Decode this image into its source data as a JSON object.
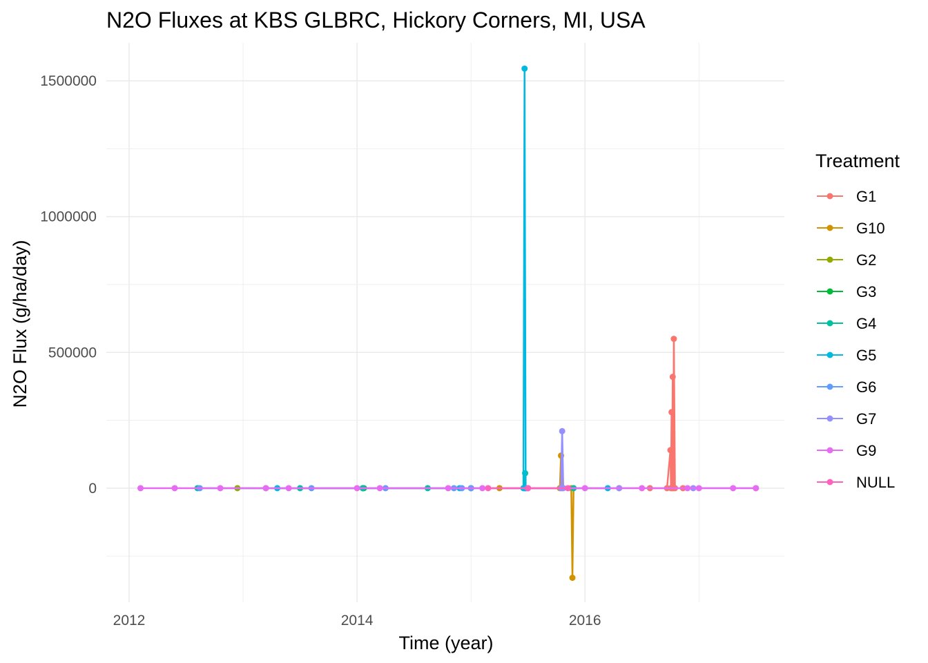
{
  "chart_data": {
    "type": "line",
    "title": "N2O Fluxes at KBS GLBRC, Hickory Corners, MI, USA",
    "xlabel": "Time (year)",
    "ylabel": "N2O Flux (g/ha/day)",
    "xlim": [
      2011.8,
      2017.75
    ],
    "ylim": [
      -420000,
      1640000
    ],
    "x_ticks": [
      2012,
      2014,
      2016
    ],
    "x_tick_labels": [
      "2012",
      "2014",
      "2016"
    ],
    "y_ticks": [
      0,
      500000,
      1000000,
      1500000
    ],
    "y_tick_labels": [
      "0",
      "500000",
      "1000000",
      "1500000"
    ],
    "grid": true,
    "legend": {
      "title": "Treatment",
      "position": "right"
    },
    "series": [
      {
        "name": "G1",
        "color": "#F8766D",
        "x": [
          2016.57,
          2016.72,
          2016.75,
          2016.755,
          2016.76,
          2016.765,
          2016.77,
          2016.775,
          2016.78,
          2016.79,
          2016.86
        ],
        "y": [
          0,
          0,
          140000,
          0,
          280000,
          0,
          410000,
          0,
          550000,
          0,
          0
        ]
      },
      {
        "name": "G10",
        "color": "#D39200",
        "x": [
          2015.25,
          2015.78,
          2015.79,
          2015.8,
          2015.88,
          2015.89,
          2015.9,
          2016.3
        ],
        "y": [
          0,
          0,
          120000,
          0,
          0,
          -330000,
          0,
          0
        ]
      },
      {
        "name": "G2",
        "color": "#93AA00",
        "x": [
          2012.95,
          2015.0
        ],
        "y": [
          0,
          0
        ]
      },
      {
        "name": "G3",
        "color": "#00BA38",
        "x": [
          2014.05,
          2014.06
        ],
        "y": [
          0,
          0
        ]
      },
      {
        "name": "G4",
        "color": "#00C19F",
        "x": [
          2012.6,
          2013.5,
          2014.05,
          2014.62,
          2015.0,
          2015.47,
          2015.475,
          2015.48,
          2015.9
        ],
        "y": [
          0,
          0,
          0,
          0,
          0,
          0,
          55000,
          0,
          0
        ]
      },
      {
        "name": "G5",
        "color": "#00B9E3",
        "x": [
          2013.3,
          2014.9,
          2015.46,
          2015.47,
          2015.48,
          2016.2
        ],
        "y": [
          0,
          0,
          0,
          1545000,
          0,
          0
        ]
      },
      {
        "name": "G6",
        "color": "#619CFF",
        "x": [
          2012.62,
          2013.2,
          2013.6,
          2014.25,
          2014.85,
          2014.92,
          2015.0
        ],
        "y": [
          0,
          0,
          0,
          0,
          0,
          0,
          0
        ]
      },
      {
        "name": "G7",
        "color": "#9590FF",
        "x": [
          2015.5,
          2015.79,
          2015.8,
          2015.81,
          2016.3,
          2016.95,
          2017.5
        ],
        "y": [
          0,
          0,
          210000,
          0,
          0,
          0,
          0
        ]
      },
      {
        "name": "G9",
        "color": "#E76BF3",
        "x": [
          2012.1,
          2012.4,
          2012.8,
          2013.2,
          2013.4,
          2014.0,
          2014.2,
          2014.8,
          2015.1,
          2015.5,
          2016.0,
          2016.5,
          2016.9,
          2017.0,
          2017.3,
          2017.5
        ],
        "y": [
          0,
          0,
          0,
          0,
          0,
          0,
          0,
          0,
          0,
          0,
          0,
          0,
          0,
          0,
          0,
          0
        ]
      },
      {
        "name": "NULL",
        "color": "#FF62BC",
        "x": [
          2015.15,
          2015.5,
          2015.85
        ],
        "y": [
          0,
          0,
          0
        ]
      }
    ]
  }
}
